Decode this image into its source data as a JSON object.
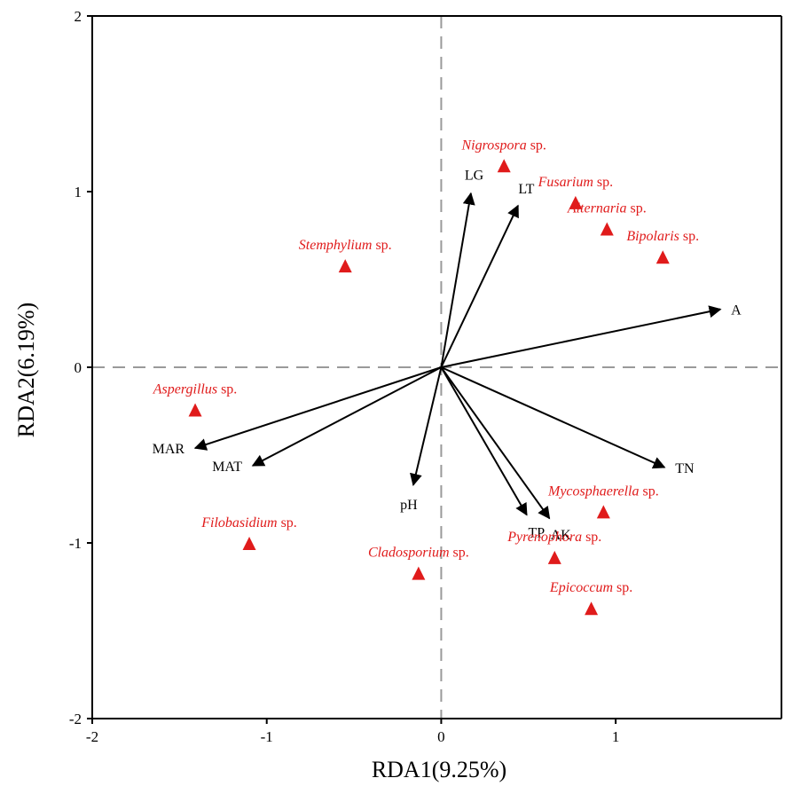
{
  "chart_data": {
    "type": "scatter",
    "xlabel": "RDA1(9.25%)",
    "ylabel": "RDA2(6.19%)",
    "xlim": [
      -2,
      1.95
    ],
    "ylim": [
      -2,
      2
    ],
    "x_ticks": [
      -2,
      -1,
      0,
      1
    ],
    "y_ticks": [
      -2,
      -1,
      0,
      1,
      2
    ],
    "x_tick_labels": [
      "-2",
      "-1",
      "0",
      "1"
    ],
    "y_tick_labels": [
      "-2",
      "-1",
      "0",
      "1",
      "2"
    ],
    "reference_lines": {
      "x": 0,
      "y": 0,
      "style": "dashed"
    },
    "grid": false,
    "colors": {
      "species": "#e01b1b",
      "vectors": "#000000",
      "reference": "#9a9a9a"
    },
    "vectors": [
      {
        "label": "LG",
        "x": 0.17,
        "y": 0.99
      },
      {
        "label": "LT",
        "x": 0.44,
        "y": 0.92
      },
      {
        "label": "A",
        "x": 1.6,
        "y": 0.33
      },
      {
        "label": "TN",
        "x": 1.28,
        "y": -0.57
      },
      {
        "label": "AK",
        "x": 0.62,
        "y": -0.86
      },
      {
        "label": "TP",
        "x": 0.49,
        "y": -0.84
      },
      {
        "label": "pH",
        "x": -0.16,
        "y": -0.67
      },
      {
        "label": "MAT",
        "x": -1.08,
        "y": -0.56
      },
      {
        "label": "MAR",
        "x": -1.41,
        "y": -0.46
      }
    ],
    "species": [
      {
        "genus": "Nigrospora",
        "suffix": " sp.",
        "x": 0.36,
        "y": 1.14
      },
      {
        "genus": "Fusarium",
        "suffix": " sp.",
        "x": 0.77,
        "y": 0.93
      },
      {
        "genus": "Alternaria",
        "suffix": " sp.",
        "x": 0.95,
        "y": 0.78
      },
      {
        "genus": "Bipolaris",
        "suffix": " sp.",
        "x": 1.27,
        "y": 0.62
      },
      {
        "genus": "Stemphylium",
        "suffix": " sp.",
        "x": -0.55,
        "y": 0.57
      },
      {
        "genus": "Aspergillus",
        "suffix": " sp.",
        "x": -1.41,
        "y": -0.25
      },
      {
        "genus": "Filobasidium",
        "suffix": " sp.",
        "x": -1.1,
        "y": -1.01
      },
      {
        "genus": "Cladosporium",
        "suffix": " sp.",
        "x": -0.13,
        "y": -1.18
      },
      {
        "genus": "Mycosphaerella",
        "suffix": " sp.",
        "x": 0.93,
        "y": -0.83
      },
      {
        "genus": "Pyrenophora",
        "suffix": " sp.",
        "x": 0.65,
        "y": -1.09
      },
      {
        "genus": "Epicoccum",
        "suffix": " sp.",
        "x": 0.86,
        "y": -1.38
      }
    ]
  }
}
